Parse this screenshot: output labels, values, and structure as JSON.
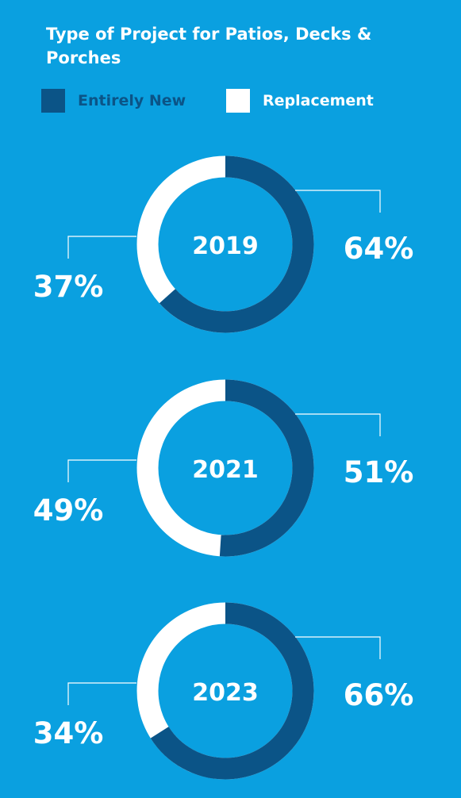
{
  "chart_data": [
    {
      "type": "pie",
      "title": "Type of Project for Patios, Decks & Porches",
      "center_label": "2019",
      "series": [
        {
          "name": "Entirely New",
          "value": 64,
          "label": "64%"
        },
        {
          "name": "Replacement",
          "value": 37,
          "label": "37%"
        }
      ]
    },
    {
      "type": "pie",
      "center_label": "2021",
      "series": [
        {
          "name": "Entirely New",
          "value": 51,
          "label": "51%"
        },
        {
          "name": "Replacement",
          "value": 49,
          "label": "49%"
        }
      ]
    },
    {
      "type": "pie",
      "center_label": "2023",
      "series": [
        {
          "name": "Entirely New",
          "value": 66,
          "label": "66%"
        },
        {
          "name": "Replacement",
          "value": 34,
          "label": "34%"
        }
      ]
    }
  ],
  "title": "Type of Project for Patios, Decks & Porches",
  "legend": [
    {
      "label": "Entirely New",
      "color": "#0b5487"
    },
    {
      "label": "Replacement",
      "color": "#ffffff"
    }
  ],
  "colors": {
    "background": "#0aa0e0",
    "new": "#0b5487",
    "replacement": "#ffffff"
  }
}
